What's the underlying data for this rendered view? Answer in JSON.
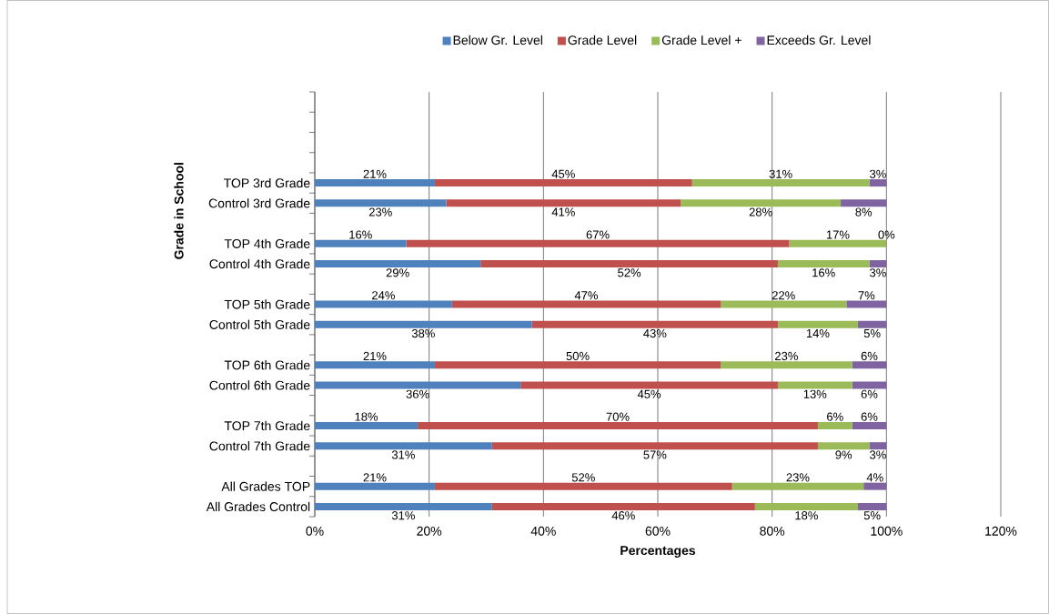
{
  "chart_data": {
    "type": "bar",
    "orientation": "horizontal",
    "stacked": true,
    "xlabel": "Percentages",
    "ylabel": "Grade in School",
    "categories": [
      null,
      null,
      null,
      null,
      "TOP 3rd Grade",
      "Control 3rd Grade",
      null,
      "TOP 4th Grade",
      "Control 4th Grade",
      null,
      "TOP 5th Grade",
      "Control 5th Grade",
      null,
      "TOP 6th Grade",
      "Control 6th Grade",
      null,
      "TOP 7th Grade",
      "Control 7th Grade",
      null,
      "All Grades TOP",
      "All Grades Control"
    ],
    "series": [
      {
        "name": "Below Gr. Level",
        "color": "#4f81bd",
        "values": [
          null,
          null,
          null,
          null,
          21,
          23,
          null,
          16,
          29,
          null,
          24,
          38,
          null,
          21,
          36,
          null,
          18,
          31,
          null,
          21,
          31
        ],
        "value_labels": [
          null,
          null,
          null,
          null,
          "21%",
          "23%",
          null,
          "16%",
          "29%",
          null,
          "24%",
          "38%",
          null,
          "21%",
          "36%",
          null,
          "18%",
          "31%",
          null,
          "21%",
          "31%"
        ]
      },
      {
        "name": "Grade Level",
        "color": "#c0504d",
        "values": [
          null,
          null,
          null,
          null,
          45,
          41,
          null,
          67,
          52,
          null,
          47,
          43,
          null,
          50,
          45,
          null,
          70,
          57,
          null,
          52,
          46
        ],
        "value_labels": [
          null,
          null,
          null,
          null,
          "45%",
          "41%",
          null,
          "67%",
          "52%",
          null,
          "47%",
          "43%",
          null,
          "50%",
          "45%",
          null,
          "70%",
          "57%",
          null,
          "52%",
          "46%"
        ]
      },
      {
        "name": "Grade Level +",
        "color": "#9bbb59",
        "values": [
          null,
          null,
          null,
          null,
          31,
          28,
          null,
          17,
          16,
          null,
          22,
          14,
          null,
          23,
          13,
          null,
          6,
          9,
          null,
          23,
          18
        ],
        "value_labels": [
          null,
          null,
          null,
          null,
          "31%",
          "28%",
          null,
          "17%",
          "16%",
          null,
          "22%",
          "14%",
          null,
          "23%",
          "13%",
          null,
          "6%",
          "9%",
          null,
          "23%",
          "18%"
        ]
      },
      {
        "name": "Exceeds Gr. Level",
        "color": "#8064a2",
        "values": [
          null,
          null,
          null,
          null,
          3,
          8,
          null,
          0,
          3,
          null,
          7,
          5,
          null,
          6,
          6,
          null,
          6,
          3,
          null,
          4,
          5
        ],
        "value_labels": [
          null,
          null,
          null,
          null,
          "3%",
          "8%",
          null,
          "0%",
          "3%",
          null,
          "7%",
          "5%",
          null,
          "6%",
          "6%",
          null,
          "6%",
          "3%",
          null,
          "4%",
          "5%"
        ]
      }
    ],
    "xlim": [
      0,
      120
    ],
    "xticks": [
      {
        "value": 0,
        "label": "0%"
      },
      {
        "value": 20,
        "label": "20%"
      },
      {
        "value": 40,
        "label": "40%"
      },
      {
        "value": 60,
        "label": "60%"
      },
      {
        "value": 80,
        "label": "80%"
      },
      {
        "value": 100,
        "label": "100%"
      },
      {
        "value": 120,
        "label": "120%"
      }
    ],
    "grid": "x",
    "legend": "top"
  }
}
